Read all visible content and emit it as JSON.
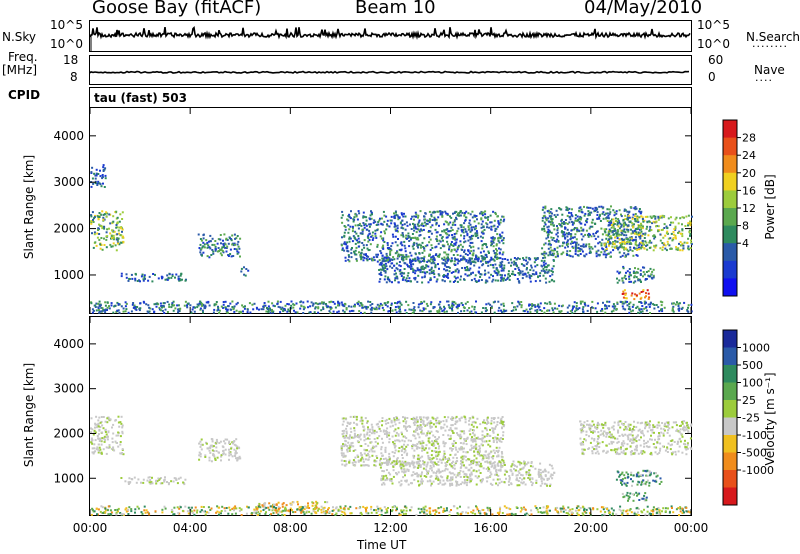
{
  "header": {
    "station": "Goose Bay (fitACF)",
    "beam": "Beam 10",
    "date": "04/May/2010"
  },
  "top_panels": {
    "nsky_label": "N.Sky",
    "nsky_ticks": [
      "10^5",
      "10^0"
    ],
    "nsearch_label": "N.Search",
    "nsearch_ticks": [
      "10^5",
      "10^0"
    ],
    "freq_label": "Freq.",
    "freq_unit": "[MHz]",
    "freq_ticks": [
      "18",
      "8"
    ],
    "nave_label": "Nave",
    "nave_ticks": [
      "60",
      "0"
    ],
    "cpid_label": "CPID",
    "cpid_value": "tau (fast) 503"
  },
  "colorbars": {
    "power": {
      "label": "Power [dB]",
      "ticks": [
        "28",
        "24",
        "20",
        "16",
        "12",
        "8",
        "4"
      ],
      "colors": [
        "#d7191c",
        "#e8501a",
        "#f08c1c",
        "#f0d020",
        "#9ccc3c",
        "#5aa84e",
        "#2e8a5e",
        "#2a5aa8",
        "#1a3ad0",
        "#1010f0"
      ]
    },
    "velocity": {
      "label": "Velocity [m s⁻¹]",
      "ticks": [
        "1000",
        "500",
        "100",
        "25",
        "-25",
        "-100",
        "-500",
        "-1000"
      ],
      "colors": [
        "#1a2a9a",
        "#2a5aa8",
        "#2e8a5e",
        "#5aa84e",
        "#9ccc3c",
        "#c8c8c8",
        "#f0c020",
        "#f08c1c",
        "#e8501a",
        "#d7191c"
      ]
    }
  },
  "chart_data": [
    {
      "type": "heatmap",
      "title": "Power",
      "xlabel": "Time UT",
      "ylabel": "Slant Range [km]",
      "xticks": [
        "00:00",
        "04:00",
        "08:00",
        "12:00",
        "16:00",
        "20:00",
        "00:00"
      ],
      "xlim": [
        0,
        24
      ],
      "yticks": [
        "1000",
        "2000",
        "3000",
        "4000"
      ],
      "ylim": [
        180,
        4600
      ],
      "echo_regions": [
        {
          "t0": 0.0,
          "t1": 1.3,
          "r0": 1550,
          "r1": 2400,
          "level": "high"
        },
        {
          "t0": 0.0,
          "t1": 0.6,
          "r0": 2900,
          "r1": 3400,
          "level": "low"
        },
        {
          "t0": 1.2,
          "t1": 3.8,
          "r0": 880,
          "r1": 1050,
          "level": "low"
        },
        {
          "t0": 4.3,
          "t1": 6.0,
          "r0": 1400,
          "r1": 1900,
          "level": "mid"
        },
        {
          "t0": 6.0,
          "t1": 6.3,
          "r0": 1000,
          "r1": 1200,
          "level": "low"
        },
        {
          "t0": 10.0,
          "t1": 16.5,
          "r0": 1300,
          "r1": 2400,
          "level": "mid"
        },
        {
          "t0": 11.5,
          "t1": 18.5,
          "r0": 850,
          "r1": 1400,
          "level": "low"
        },
        {
          "t0": 18.0,
          "t1": 22.0,
          "r0": 1400,
          "r1": 2500,
          "level": "mid"
        },
        {
          "t0": 20.5,
          "t1": 24.0,
          "r0": 1550,
          "r1": 2300,
          "level": "high"
        },
        {
          "t0": 21.0,
          "t1": 22.5,
          "r0": 850,
          "r1": 1200,
          "level": "mid"
        },
        {
          "t0": 21.2,
          "t1": 22.3,
          "r0": 500,
          "r1": 700,
          "level": "peak"
        },
        {
          "t0": 0.0,
          "t1": 24.0,
          "r0": 200,
          "r1": 450,
          "level": "mid"
        }
      ]
    },
    {
      "type": "heatmap",
      "title": "Velocity",
      "xlabel": "Time UT",
      "ylabel": "Slant Range [km]",
      "xticks": [
        "00:00",
        "04:00",
        "08:00",
        "12:00",
        "16:00",
        "20:00",
        "00:00"
      ],
      "xlim": [
        0,
        24
      ],
      "yticks": [
        "1000",
        "2000",
        "3000",
        "4000"
      ],
      "ylim": [
        180,
        4600
      ],
      "echo_regions": [
        {
          "t0": 0.0,
          "t1": 1.3,
          "r0": 1550,
          "r1": 2400,
          "level": "ground"
        },
        {
          "t0": 1.2,
          "t1": 3.8,
          "r0": 880,
          "r1": 1050,
          "level": "ground"
        },
        {
          "t0": 4.3,
          "t1": 6.0,
          "r0": 1400,
          "r1": 1900,
          "level": "ground"
        },
        {
          "t0": 10.0,
          "t1": 16.5,
          "r0": 1300,
          "r1": 2400,
          "level": "ground"
        },
        {
          "t0": 11.5,
          "t1": 18.5,
          "r0": 850,
          "r1": 1400,
          "level": "ground"
        },
        {
          "t0": 19.5,
          "t1": 24.0,
          "r0": 1550,
          "r1": 2300,
          "level": "ground"
        },
        {
          "t0": 21.0,
          "t1": 22.8,
          "r0": 850,
          "r1": 1200,
          "level": "toward"
        },
        {
          "t0": 21.2,
          "t1": 22.3,
          "r0": 500,
          "r1": 700,
          "level": "toward"
        },
        {
          "t0": 6.5,
          "t1": 9.5,
          "r0": 250,
          "r1": 500,
          "level": "away"
        },
        {
          "t0": 0.0,
          "t1": 24.0,
          "r0": 200,
          "r1": 400,
          "level": "mixed"
        }
      ]
    }
  ]
}
